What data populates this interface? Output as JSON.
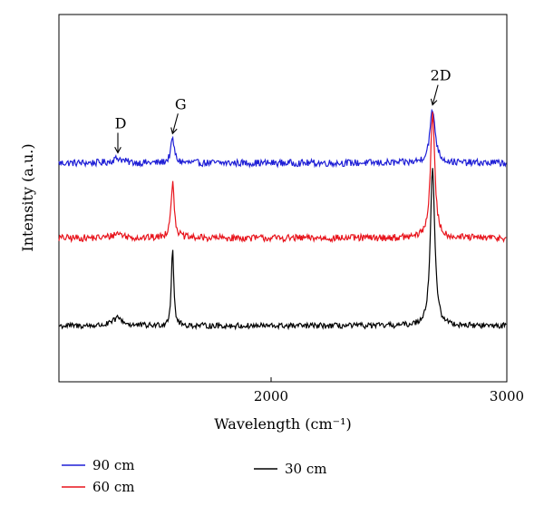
{
  "chart_data": {
    "type": "line",
    "title": "",
    "xlabel": "Wavelength (cm⁻¹)",
    "ylabel": "Intensity (a.u.)",
    "xlim": [
      1100,
      3000
    ],
    "x_ticks": [
      {
        "value": 2000,
        "label": "2000"
      },
      {
        "value": 3000,
        "label": "3000"
      }
    ],
    "y_ticks": [],
    "grid": false,
    "legend_position": "bottom",
    "series": [
      {
        "name": "90 cm",
        "color": "#1f1fd6",
        "baseline": 0.42,
        "noise": 0.022,
        "peaks": [
          {
            "x": 1350,
            "height": 0.03,
            "width": 25
          },
          {
            "x": 1582,
            "height": 0.15,
            "width": 9
          },
          {
            "x": 2685,
            "height": 0.33,
            "width": 14
          }
        ]
      },
      {
        "name": "60 cm",
        "color": "#e8141c",
        "baseline": -0.05,
        "noise": 0.022,
        "peaks": [
          {
            "x": 1350,
            "height": 0.03,
            "width": 25
          },
          {
            "x": 1582,
            "height": 0.34,
            "width": 9
          },
          {
            "x": 2685,
            "height": 0.78,
            "width": 11
          }
        ]
      },
      {
        "name": "30 cm",
        "color": "#000000",
        "baseline": -0.6,
        "noise": 0.018,
        "peaks": [
          {
            "x": 1350,
            "height": 0.05,
            "width": 25
          },
          {
            "x": 1582,
            "height": 0.5,
            "width": 6
          },
          {
            "x": 2685,
            "height": 1.0,
            "width": 11
          }
        ]
      }
    ],
    "annotations": [
      {
        "text": "D",
        "x": 1350
      },
      {
        "text": "G",
        "x": 1582
      },
      {
        "text": "2D",
        "x": 2685
      }
    ]
  }
}
